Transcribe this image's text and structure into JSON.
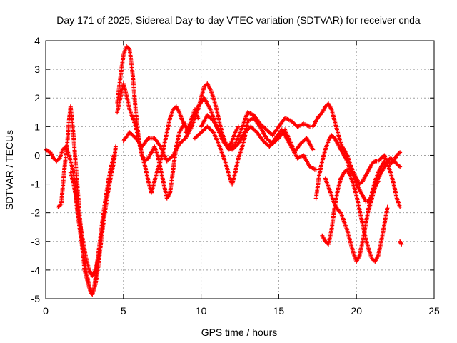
{
  "chart_data": {
    "type": "scatter",
    "title": "Day 171 of 2025, Sidereal Day-to-day VTEC variation (SDTVAR) for receiver cnda",
    "xlabel": "GPS time / hours",
    "ylabel": "SDTVAR / TECUs",
    "xlim": [
      0,
      25
    ],
    "ylim": [
      -5,
      4
    ],
    "xticks": [
      0,
      5,
      10,
      15,
      20,
      25
    ],
    "yticks": [
      -5,
      -4,
      -3,
      -2,
      -1,
      0,
      1,
      2,
      3,
      4
    ],
    "x_tick_labels": [
      "0",
      "5",
      "10",
      "15",
      "20",
      "25"
    ],
    "y_tick_labels": [
      "-5",
      "-4",
      "-3",
      "-2",
      "-1",
      "0",
      "1",
      "2",
      "3",
      "4"
    ],
    "grid": true,
    "marker": "plus",
    "color": "#ff0000",
    "series": [
      {
        "x": [
          0.0,
          0.3,
          0.5,
          0.7,
          0.9,
          1.1,
          1.3,
          1.5,
          1.7,
          1.9,
          2.0,
          2.2,
          2.4,
          2.5,
          2.7,
          2.9,
          3.0,
          3.2,
          3.4,
          3.6,
          3.8,
          4.0,
          4.2,
          4.4,
          4.5
        ],
        "y": [
          0.2,
          0.1,
          -0.1,
          -0.2,
          -0.1,
          0.2,
          0.3,
          0.0,
          -0.4,
          -1.0,
          -1.8,
          -2.6,
          -3.4,
          -4.0,
          -4.4,
          -4.7,
          -4.8,
          -4.5,
          -3.8,
          -2.8,
          -2.0,
          -1.3,
          -0.7,
          -0.2,
          0.3
        ]
      },
      {
        "x": [
          0.8,
          1.0,
          1.2,
          1.4,
          1.5,
          1.6,
          1.7,
          1.8,
          1.9,
          2.0,
          2.1,
          2.2,
          2.3,
          2.4,
          2.5,
          2.6,
          2.7,
          2.8,
          2.9,
          3.0,
          3.1,
          3.2,
          3.4,
          3.6,
          3.8,
          4.0,
          4.2,
          4.4
        ],
        "y": [
          -1.8,
          -1.7,
          -0.5,
          0.5,
          1.2,
          1.7,
          1.2,
          0.6,
          -0.1,
          -0.8,
          -1.5,
          -2.2,
          -2.8,
          -3.3,
          -3.7,
          -4.0,
          -4.3,
          -4.6,
          -4.8,
          -4.85,
          -4.7,
          -4.3,
          -3.4,
          -2.5,
          -1.7,
          -1.0,
          -0.4,
          0.0
        ]
      },
      {
        "x": [
          1.6,
          1.8,
          2.0,
          2.2,
          2.4,
          2.6,
          2.8,
          3.0,
          3.2,
          3.4
        ],
        "y": [
          -0.6,
          -1.0,
          -1.6,
          -2.4,
          -3.0,
          -3.6,
          -4.0,
          -4.2,
          -4.0,
          -3.5
        ]
      },
      {
        "x": [
          4.6,
          4.8,
          5.0,
          5.2,
          5.4,
          5.6,
          5.8,
          6.0,
          6.2,
          6.4,
          6.6,
          6.8,
          7.0,
          7.2,
          7.4,
          7.6,
          7.8,
          8.0,
          8.2,
          8.4,
          8.6,
          8.8,
          9.0
        ],
        "y": [
          1.8,
          2.7,
          3.5,
          3.8,
          3.7,
          2.8,
          1.5,
          0.5,
          0.0,
          -0.2,
          -0.1,
          0.1,
          0.3,
          0.0,
          -0.5,
          -1.0,
          -1.5,
          -1.3,
          -0.5,
          0.3,
          0.8,
          1.0,
          1.1
        ]
      },
      {
        "x": [
          4.6,
          4.8,
          5.0,
          5.2,
          5.4,
          5.6,
          5.8,
          6.0,
          6.2,
          6.4,
          6.6,
          6.8,
          7.0,
          7.2,
          7.4,
          7.6,
          7.8,
          8.0,
          8.2,
          8.4,
          8.6,
          8.8,
          9.0,
          9.2,
          9.4,
          9.6,
          9.8
        ],
        "y": [
          1.5,
          2.0,
          2.5,
          2.1,
          1.6,
          1.3,
          1.0,
          0.5,
          0.0,
          -0.4,
          -0.9,
          -1.3,
          -0.9,
          -0.5,
          -0.2,
          0.3,
          0.8,
          1.3,
          1.6,
          1.7,
          1.5,
          1.2,
          1.0,
          0.9,
          1.3,
          1.6,
          1.3
        ]
      },
      {
        "x": [
          5.0,
          5.4,
          5.8,
          6.2,
          6.6,
          7.0,
          7.4,
          7.8,
          8.2,
          8.6,
          9.0,
          9.4,
          9.8,
          10.0,
          10.2,
          10.4,
          10.6,
          10.8,
          11.0,
          11.2,
          11.4,
          11.6,
          11.8,
          12.0,
          12.2,
          12.4
        ],
        "y": [
          0.5,
          0.8,
          0.6,
          0.3,
          0.6,
          0.6,
          0.3,
          -0.2,
          0.0,
          0.4,
          0.6,
          1.0,
          1.6,
          2.0,
          2.4,
          2.5,
          2.3,
          2.0,
          1.6,
          1.1,
          0.7,
          0.4,
          0.3,
          0.5,
          0.8,
          1.0
        ]
      },
      {
        "x": [
          9.0,
          9.4,
          9.8,
          10.2,
          10.6,
          11.0,
          11.4,
          11.8,
          12.2,
          12.6,
          13.0,
          13.4,
          13.8,
          14.2,
          14.6,
          15.0,
          15.4,
          15.8,
          16.2,
          16.6,
          17.0
        ],
        "y": [
          0.8,
          1.2,
          1.7,
          2.0,
          1.6,
          1.0,
          0.5,
          0.2,
          0.4,
          0.9,
          1.5,
          1.4,
          1.1,
          0.9,
          0.7,
          1.0,
          1.3,
          1.2,
          1.0,
          1.1,
          1.0
        ]
      },
      {
        "x": [
          9.6,
          10.0,
          10.4,
          10.8,
          11.2,
          11.6,
          11.8,
          12.0,
          12.2,
          12.4,
          12.6,
          12.8,
          13.0,
          13.4,
          13.8,
          14.2,
          14.6,
          15.0,
          15.4,
          15.8,
          16.2,
          16.6,
          17.0,
          17.4
        ],
        "y": [
          0.6,
          0.8,
          1.0,
          0.8,
          0.3,
          -0.3,
          -0.7,
          -1.0,
          -0.6,
          -0.1,
          0.2,
          0.6,
          1.2,
          1.3,
          1.0,
          0.6,
          0.4,
          0.6,
          0.9,
          0.4,
          -0.1,
          0.0,
          -0.4,
          -0.5
        ]
      },
      {
        "x": [
          10.0,
          10.4,
          10.8,
          11.2,
          11.6,
          12.0,
          12.4,
          12.8,
          13.2,
          13.6,
          14.0,
          14.4,
          14.8,
          15.2,
          15.6,
          16.0,
          16.4,
          16.8,
          17.2
        ],
        "y": [
          1.0,
          1.4,
          1.2,
          0.8,
          0.4,
          0.2,
          0.4,
          0.8,
          1.0,
          0.8,
          0.5,
          0.3,
          0.6,
          0.9,
          0.5,
          0.1,
          0.4,
          0.6,
          0.2
        ]
      },
      {
        "x": [
          17.2,
          17.5,
          17.8,
          18.0,
          18.2,
          18.4,
          18.6,
          18.8,
          19.0,
          19.2,
          19.4,
          19.6,
          19.8,
          20.0,
          20.2,
          20.4,
          20.6,
          20.8,
          21.0,
          21.2,
          21.4,
          21.6,
          21.8,
          22.0,
          22.2,
          22.4,
          22.6,
          22.8
        ],
        "y": [
          1.0,
          1.3,
          1.5,
          1.7,
          1.8,
          1.6,
          1.2,
          0.8,
          0.4,
          0.2,
          0.0,
          -0.3,
          -0.6,
          -0.8,
          -1.0,
          -0.9,
          -0.7,
          -0.5,
          -0.3,
          -0.2,
          -0.2,
          -0.1,
          0.0,
          -0.3,
          -0.6,
          -1.0,
          -1.5,
          -1.8
        ]
      },
      {
        "x": [
          17.4,
          17.6,
          17.8,
          18.0,
          18.2,
          18.4,
          18.6,
          18.8,
          19.0,
          19.2,
          19.4,
          19.6,
          19.8,
          20.0,
          20.2,
          20.4,
          20.6,
          20.8,
          21.0,
          21.2,
          21.4,
          21.6,
          21.8,
          22.0,
          22.2,
          22.4,
          22.6,
          22.8
        ],
        "y": [
          -1.5,
          -0.7,
          -0.2,
          0.2,
          0.5,
          0.7,
          0.6,
          0.4,
          0.2,
          0.0,
          -0.2,
          -0.5,
          -0.7,
          -1.0,
          -1.2,
          -1.4,
          -1.6,
          -1.6,
          -1.4,
          -1.1,
          -0.8,
          -0.6,
          -0.4,
          -0.2,
          -0.1,
          -0.2,
          -0.3,
          -0.4
        ]
      },
      {
        "x": [
          18.0,
          18.2,
          18.4,
          18.6,
          18.8,
          19.0,
          19.2,
          19.4,
          19.6,
          19.8,
          20.0,
          20.2,
          20.4,
          20.6,
          20.8,
          21.0,
          21.2,
          21.4,
          21.6,
          21.8,
          22.0,
          22.2,
          22.4,
          22.6,
          22.8
        ],
        "y": [
          -0.8,
          -1.1,
          -1.4,
          -1.7,
          -1.9,
          -2.0,
          -2.3,
          -2.6,
          -3.0,
          -3.4,
          -3.7,
          -3.5,
          -3.0,
          -2.4,
          -1.8,
          -1.3,
          -0.9,
          -0.6,
          -0.4,
          -0.2,
          -0.2,
          -0.3,
          -0.2,
          0.0,
          0.1
        ]
      },
      {
        "x": [
          17.8,
          18.0,
          18.2,
          18.4,
          18.6,
          18.8,
          19.0,
          19.2,
          19.4,
          19.6,
          19.8,
          20.0,
          20.2,
          20.4,
          20.6,
          20.8,
          21.0,
          21.2,
          21.4,
          21.6,
          21.8,
          22.0
        ],
        "y": [
          -2.8,
          -3.0,
          -3.1,
          -2.6,
          -1.8,
          -1.2,
          -0.8,
          -0.6,
          -0.5,
          -0.7,
          -1.0,
          -1.4,
          -1.9,
          -2.4,
          -2.9,
          -3.3,
          -3.6,
          -3.7,
          -3.5,
          -3.0,
          -2.4,
          -1.8
        ]
      },
      {
        "x": [
          20.8,
          21.0,
          21.2,
          21.4
        ],
        "y": [
          -1.9,
          -1.5,
          -1.1,
          -0.9
        ]
      },
      {
        "x": [
          22.8,
          22.9
        ],
        "y": [
          -3.0,
          -3.1
        ]
      }
    ]
  }
}
